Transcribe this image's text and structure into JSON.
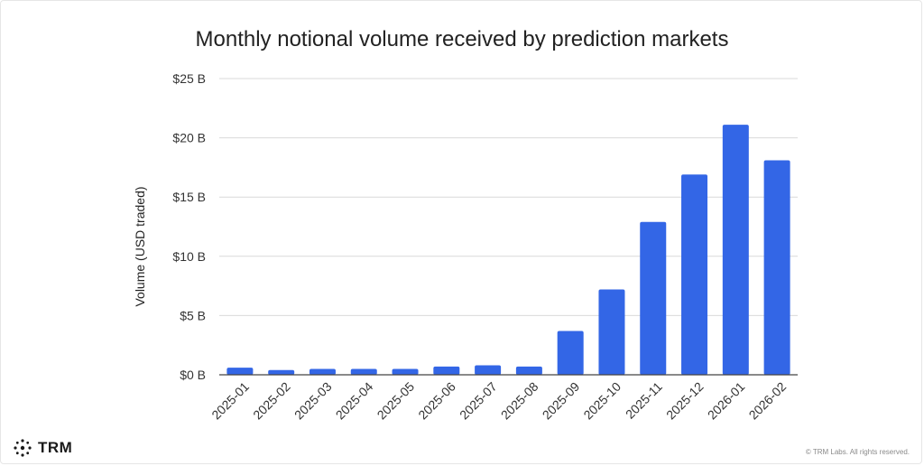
{
  "chart_data": {
    "type": "bar",
    "title": "Monthly notional volume received by prediction markets",
    "xlabel": "",
    "ylabel": "Volume (USD traded)",
    "ylim": [
      0,
      25
    ],
    "yticks": [
      0,
      5,
      10,
      15,
      20,
      25
    ],
    "ytick_labels": [
      "$0 B",
      "$5 B",
      "$10 B",
      "$15 B",
      "$20 B",
      "$25 B"
    ],
    "categories": [
      "2025-01",
      "2025-02",
      "2025-03",
      "2025-04",
      "2025-05",
      "2025-06",
      "2025-07",
      "2025-08",
      "2025-09",
      "2025-10",
      "2025-11",
      "2025-12",
      "2026-01",
      "2026-02"
    ],
    "values": [
      0.6,
      0.4,
      0.5,
      0.5,
      0.5,
      0.7,
      0.8,
      0.7,
      3.7,
      7.2,
      12.9,
      16.9,
      21.1,
      18.1
    ],
    "unit": "USD billions",
    "bar_color": "#3366e6",
    "grid": true,
    "legend": "none"
  },
  "brand": {
    "name": "TRM",
    "icon": "trm-logo-icon"
  },
  "footer": {
    "copyright": "© TRM Labs. All rights reserved."
  }
}
